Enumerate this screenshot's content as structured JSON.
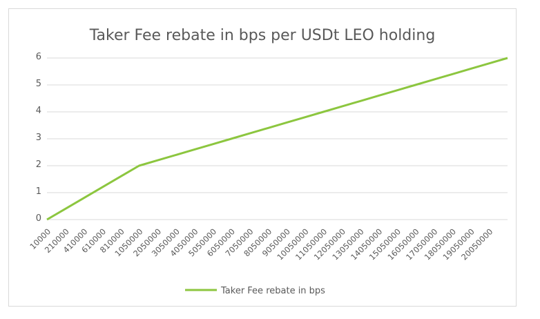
{
  "chart_data": {
    "type": "line",
    "title": "Taker Fee rebate in bps per USDt LEO holding",
    "xlabel": "",
    "ylabel": "",
    "ylim": [
      0,
      6
    ],
    "yticks": [
      0,
      1,
      2,
      3,
      4,
      5,
      6
    ],
    "grid": true,
    "legend_position": "bottom",
    "line_color": "#8cc63f",
    "categories": [
      "10000",
      "210000",
      "410000",
      "610000",
      "810000",
      "1050000",
      "2050000",
      "3050000",
      "4050000",
      "5050000",
      "6050000",
      "7050000",
      "8050000",
      "9050000",
      "10050000",
      "11050000",
      "12050000",
      "13050000",
      "14050000",
      "15050000",
      "16050000",
      "17050000",
      "18050000",
      "19050000",
      "20050000",
      ""
    ],
    "series": [
      {
        "name": "Taker Fee rebate in bps",
        "values": [
          0,
          0.4,
          0.8,
          1.2,
          1.6,
          2.0,
          2.2,
          2.4,
          2.6,
          2.8,
          3.0,
          3.2,
          3.4,
          3.6,
          3.8,
          4.0,
          4.2,
          4.4,
          4.6,
          4.8,
          5.0,
          5.2,
          5.4,
          5.6,
          5.8,
          6.0
        ]
      }
    ]
  }
}
